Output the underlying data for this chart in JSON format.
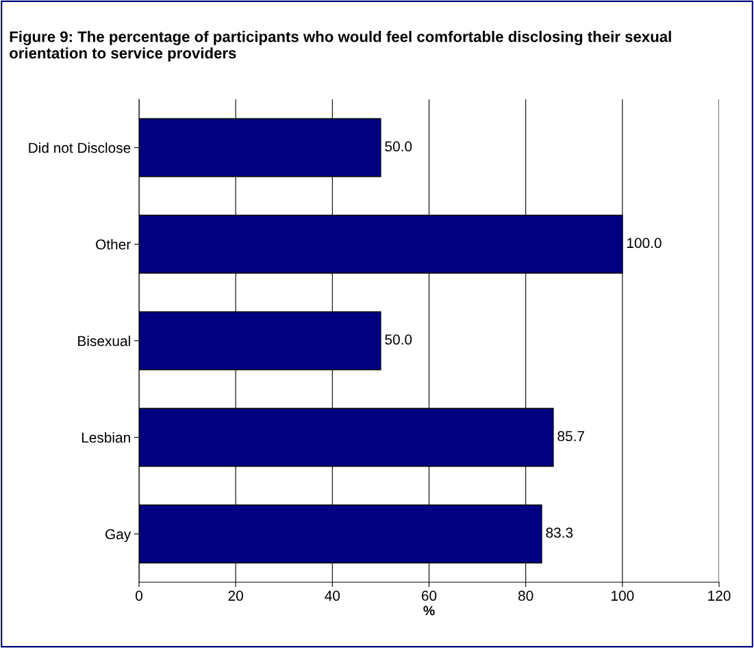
{
  "chart_data": {
    "type": "bar",
    "orientation": "horizontal",
    "title": "Figure 9: The percentage of participants who would feel comfortable disclosing their sexual orientation to service providers",
    "categories": [
      "Did not Disclose",
      "Other",
      "Bisexual",
      "Lesbian",
      "Gay"
    ],
    "values": [
      50.0,
      100.0,
      50.0,
      85.7,
      83.3
    ],
    "color": "#000080",
    "xlabel": "%",
    "xlim": [
      0,
      120
    ],
    "xticks": [
      0,
      20,
      40,
      60,
      80,
      100,
      120
    ],
    "value_labels": [
      "50.0",
      "100.0",
      "50.0",
      "85.7",
      "83.3"
    ],
    "grid": "x"
  }
}
